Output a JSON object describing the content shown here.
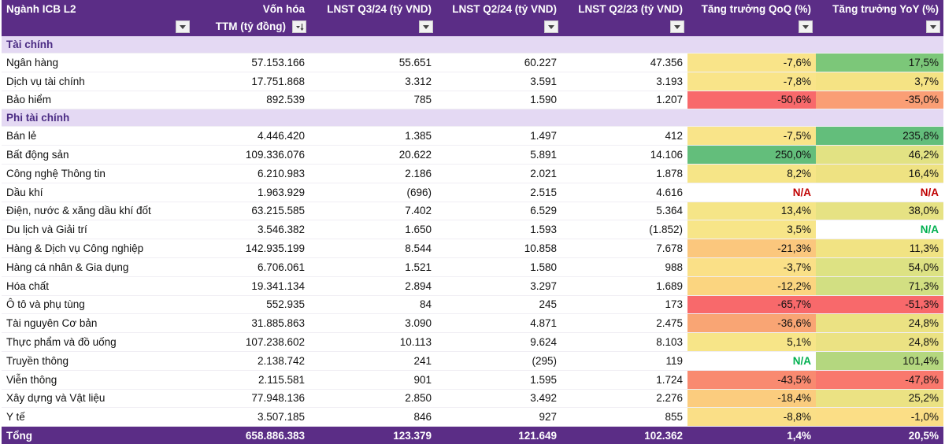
{
  "headers": [
    {
      "line1": "Ngành ICB L2",
      "line2": "",
      "filter_icon": "dropdown-arrow-icon"
    },
    {
      "line1": "Vốn hóa",
      "line2": "TTM (tỷ đồng)",
      "filter_icon": "sort-descending-icon"
    },
    {
      "line1": "LNST Q3/24 (tỷ VND)",
      "line2": "",
      "filter_icon": "dropdown-arrow-icon"
    },
    {
      "line1": "LNST Q2/24 (tỷ VND)",
      "line2": "",
      "filter_icon": "dropdown-arrow-icon"
    },
    {
      "line1": "LNST Q2/23 (tỷ VND)",
      "line2": "",
      "filter_icon": "dropdown-arrow-icon"
    },
    {
      "line1": "Tăng trưởng QoQ (%)",
      "line2": "",
      "filter_icon": "dropdown-arrow-icon"
    },
    {
      "line1": "Tăng trưởng YoY (%)",
      "line2": "",
      "filter_icon": "dropdown-arrow-icon"
    }
  ],
  "groups": [
    {
      "title": "Tài chính",
      "rows": [
        {
          "name": "Ngân hàng",
          "cap": "57.153.166",
          "q324": "55.651",
          "q224": "60.227",
          "q223": "47.356",
          "qoq": "-7,6%",
          "yoy": "17,5%",
          "qoq_color": "#f9e489",
          "yoy_color": "#7cc779"
        },
        {
          "name": "Dịch vụ tài chính",
          "cap": "17.751.868",
          "q324": "3.312",
          "q224": "3.591",
          "q223": "3.193",
          "qoq": "-7,8%",
          "yoy": "3,7%",
          "qoq_color": "#f9e489",
          "yoy_color": "#f5e384"
        },
        {
          "name": "Bảo hiểm",
          "cap": "892.539",
          "q324": "785",
          "q224": "1.590",
          "q223": "1.207",
          "qoq": "-50,6%",
          "yoy": "-35,0%",
          "qoq_color": "#f8696b",
          "yoy_color": "#fa9e75"
        }
      ]
    },
    {
      "title": "Phi tài chính",
      "rows": [
        {
          "name": "Bán lẻ",
          "cap": "4.446.420",
          "q324": "1.385",
          "q224": "1.497",
          "q223": "412",
          "qoq": "-7,5%",
          "yoy": "235,8%",
          "qoq_color": "#f9e489",
          "yoy_color": "#63be7b"
        },
        {
          "name": "Bất động sản",
          "cap": "109.336.076",
          "q324": "20.622",
          "q224": "5.891",
          "q223": "14.106",
          "qoq": "250,0%",
          "yoy": "46,2%",
          "qoq_color": "#63be7b",
          "yoy_color": "#e2e283"
        },
        {
          "name": "Công nghệ Thông tin",
          "cap": "6.210.983",
          "q324": "2.186",
          "q224": "2.021",
          "q223": "1.878",
          "qoq": "8,2%",
          "yoy": "16,4%",
          "qoq_color": "#f6e587",
          "yoy_color": "#eee282"
        },
        {
          "name": "Dầu khí",
          "cap": "1.963.929",
          "q324": "(696)",
          "q224": "2.515",
          "q223": "4.616",
          "qoq": "N/A",
          "yoy": "N/A",
          "qoq_color": "#ffffff",
          "yoy_color": "#ffffff",
          "qoq_na": "red",
          "yoy_na": "red"
        },
        {
          "name": "Điện, nước & xăng dầu khí đốt",
          "cap": "63.215.585",
          "q324": "7.402",
          "q224": "6.529",
          "q223": "5.364",
          "qoq": "13,4%",
          "yoy": "38,0%",
          "qoq_color": "#f5e587",
          "yoy_color": "#e6e283"
        },
        {
          "name": "Du lịch và Giải trí",
          "cap": "3.546.382",
          "q324": "1.650",
          "q224": "1.593",
          "q223": "(1.852)",
          "qoq": "3,5%",
          "yoy": "N/A",
          "qoq_color": "#f7e588",
          "yoy_color": "#ffffff",
          "yoy_na": "green"
        },
        {
          "name": "Hàng & Dịch vụ Công nghiệp",
          "cap": "142.935.199",
          "q324": "8.544",
          "q224": "10.858",
          "q223": "7.678",
          "qoq": "-21,3%",
          "yoy": "11,3%",
          "qoq_color": "#fbc77d",
          "yoy_color": "#f1e383"
        },
        {
          "name": "Hàng cá nhân & Gia dụng",
          "cap": "6.706.061",
          "q324": "1.521",
          "q224": "1.580",
          "q223": "988",
          "qoq": "-3,7%",
          "yoy": "54,0%",
          "qoq_color": "#fae087",
          "yoy_color": "#dde283"
        },
        {
          "name": "Hóa chất",
          "cap": "19.341.134",
          "q324": "2.894",
          "q224": "3.297",
          "q223": "1.689",
          "qoq": "-12,2%",
          "yoy": "71,3%",
          "qoq_color": "#fbd580",
          "yoy_color": "#d2df82"
        },
        {
          "name": "Ô tô và phụ tùng",
          "cap": "552.935",
          "q324": "84",
          "q224": "245",
          "q223": "173",
          "qoq": "-65,7%",
          "yoy": "-51,3%",
          "qoq_color": "#f8696b",
          "yoy_color": "#f8696b"
        },
        {
          "name": "Tài nguyên Cơ bản",
          "cap": "31.885.863",
          "q324": "3.090",
          "q224": "4.871",
          "q223": "2.475",
          "qoq": "-36,6%",
          "yoy": "24,8%",
          "qoq_color": "#f9a574",
          "yoy_color": "#ebe283"
        },
        {
          "name": "Thực phẩm và đồ uống",
          "cap": "107.238.602",
          "q324": "10.113",
          "q224": "9.624",
          "q223": "8.103",
          "qoq": "5,1%",
          "yoy": "24,8%",
          "qoq_color": "#f7e588",
          "yoy_color": "#ebe283"
        },
        {
          "name": "Truyền thông",
          "cap": "2.138.742",
          "q324": "241",
          "q224": "(295)",
          "q223": "119",
          "qoq": "N/A",
          "yoy": "101,4%",
          "qoq_color": "#ffffff",
          "yoy_color": "#b4d77f",
          "qoq_na": "green"
        },
        {
          "name": "Viễn thông",
          "cap": "2.115.581",
          "q324": "901",
          "q224": "1.595",
          "q223": "1.724",
          "qoq": "-43,5%",
          "yoy": "-47,8%",
          "qoq_color": "#f98a70",
          "yoy_color": "#f9786d"
        },
        {
          "name": "Xây dựng và Vật liệu",
          "cap": "77.948.136",
          "q324": "2.850",
          "q224": "3.492",
          "q223": "2.276",
          "qoq": "-18,4%",
          "yoy": "25,2%",
          "qoq_color": "#fbcc7e",
          "yoy_color": "#ebe283"
        },
        {
          "name": "Y tế",
          "cap": "3.507.185",
          "q324": "846",
          "q224": "927",
          "q223": "855",
          "qoq": "-8,8%",
          "yoy": "-1,0%",
          "qoq_color": "#fadf87",
          "yoy_color": "#fbde86"
        }
      ]
    }
  ],
  "total": {
    "name": "Tổng",
    "cap": "658.886.383",
    "q324": "123.379",
    "q224": "121.649",
    "q223": "102.362",
    "qoq": "1,4%",
    "yoy": "20,5%"
  },
  "colors": {
    "header_bg": "#5b2d86",
    "group_bg": "#e4d9f3",
    "group_text": "#4b2c84",
    "na_red": "#c00000",
    "na_green": "#00b050"
  }
}
